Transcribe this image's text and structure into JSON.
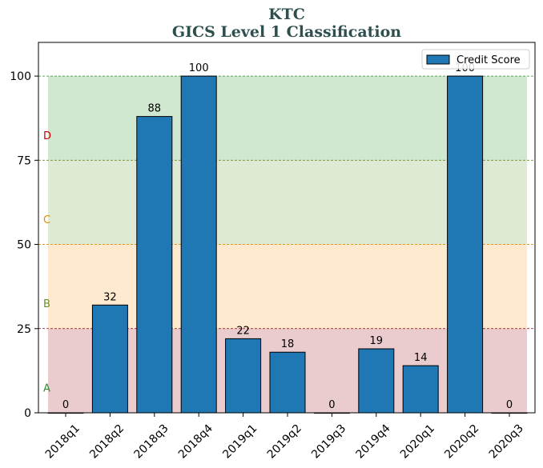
{
  "chart_data": {
    "type": "bar",
    "title": "KTC",
    "subtitle": "GICS Level 1 Classification",
    "categories": [
      "2018q1",
      "2018q2",
      "2018q3",
      "2018q4",
      "2019q1",
      "2019q2",
      "2019q3",
      "2019q4",
      "2020q1",
      "2020q2",
      "2020q3"
    ],
    "series": [
      {
        "name": "Credit Score",
        "values": [
          0,
          32,
          88,
          100,
          22,
          18,
          0,
          19,
          14,
          100,
          0
        ],
        "color": "#1f77b4"
      }
    ],
    "ylim": [
      0,
      110
    ],
    "yticks": [
      0,
      25,
      50,
      75,
      100
    ],
    "xlabel": "",
    "ylabel": "",
    "legend": "top-right",
    "bands": [
      {
        "label": "A",
        "from": 0,
        "to": 25,
        "fill": "#d9a0a6",
        "line": "#8b0000",
        "label_color": "#2e8b2e"
      },
      {
        "label": "B",
        "from": 25,
        "to": 50,
        "fill": "#ffd9a8",
        "line": "#e08a00",
        "label_color": "#6b8e23"
      },
      {
        "label": "C",
        "from": 50,
        "to": 75,
        "fill": "#c5d8b2",
        "line": "#6b8e23",
        "label_color": "#e08a00"
      },
      {
        "label": "D",
        "from": 75,
        "to": 100,
        "fill": "#a8d5a8",
        "line": "#2e8b2e",
        "label_color": "#cc0000"
      }
    ]
  }
}
